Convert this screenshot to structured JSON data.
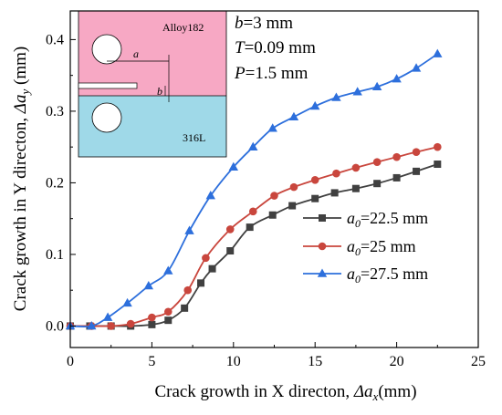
{
  "chart_data": {
    "type": "line",
    "xlabel": {
      "prefix": "Crack growth in X directon, ",
      "sym": "Δa",
      "sub": "x",
      "suffix": "(mm)"
    },
    "ylabel": {
      "prefix": "Crack growth in Y directon, ",
      "sym": "Δa",
      "sub": "y",
      "suffix": " (mm)"
    },
    "xlim": [
      0,
      25
    ],
    "ylim": [
      -0.03,
      0.44
    ],
    "xticks": [
      0,
      5,
      10,
      15,
      20,
      25
    ],
    "yticks": [
      0.0,
      0.1,
      0.2,
      0.3,
      0.4
    ],
    "grid": false,
    "legend_position": "center-right",
    "annotations": {
      "b": {
        "var": "b",
        "rest": "=3 mm"
      },
      "T": {
        "var": "T",
        "rest": "=0.09 mm"
      },
      "P": {
        "var": "P",
        "rest": "=1.5 mm"
      }
    },
    "inset": {
      "top_label": "Alloy182",
      "bottom_label": "316L",
      "dim_a": "a",
      "dim_b": "b",
      "top_color": "#f7a8c4",
      "bottom_color": "#9fd9e8"
    },
    "series": [
      {
        "name": {
          "var": "a",
          "sub": "0",
          "rest": "=22.5 mm"
        },
        "color": "#404040",
        "marker": "square",
        "x": [
          0,
          1.2,
          2.5,
          3.7,
          5.0,
          6.0,
          7.0,
          8.0,
          8.7,
          9.8,
          11.0,
          12.4,
          13.6,
          15.0,
          16.2,
          17.5,
          18.8,
          20.0,
          21.2,
          22.5
        ],
        "y": [
          0.0,
          0.0,
          0.0,
          0.0,
          0.002,
          0.008,
          0.025,
          0.06,
          0.08,
          0.105,
          0.138,
          0.155,
          0.168,
          0.178,
          0.186,
          0.192,
          0.199,
          0.207,
          0.216,
          0.226
        ]
      },
      {
        "name": {
          "var": "a",
          "sub": "0",
          "rest": "=25    mm"
        },
        "color": "#c9463d",
        "marker": "circle",
        "x": [
          0,
          1.3,
          2.5,
          3.7,
          5.0,
          6.0,
          7.2,
          8.3,
          9.8,
          11.2,
          12.5,
          13.7,
          15.0,
          16.3,
          17.5,
          18.8,
          20.0,
          21.2,
          22.5
        ],
        "y": [
          0.0,
          0.0,
          0.0,
          0.003,
          0.012,
          0.02,
          0.05,
          0.095,
          0.135,
          0.16,
          0.182,
          0.194,
          0.204,
          0.213,
          0.221,
          0.229,
          0.236,
          0.243,
          0.25
        ]
      },
      {
        "name": {
          "var": "a",
          "sub": "0",
          "rest": "=27.5 mm"
        },
        "color": "#2d6fdc",
        "marker": "triangle",
        "x": [
          0,
          1.3,
          2.3,
          3.5,
          4.8,
          6.0,
          7.3,
          8.6,
          10.0,
          11.2,
          12.4,
          13.7,
          15.0,
          16.3,
          17.6,
          18.8,
          20.0,
          21.2,
          22.5
        ],
        "y": [
          0.0,
          0.0,
          0.012,
          0.032,
          0.056,
          0.077,
          0.133,
          0.182,
          0.222,
          0.25,
          0.276,
          0.292,
          0.307,
          0.319,
          0.327,
          0.334,
          0.345,
          0.36,
          0.38
        ]
      }
    ]
  }
}
